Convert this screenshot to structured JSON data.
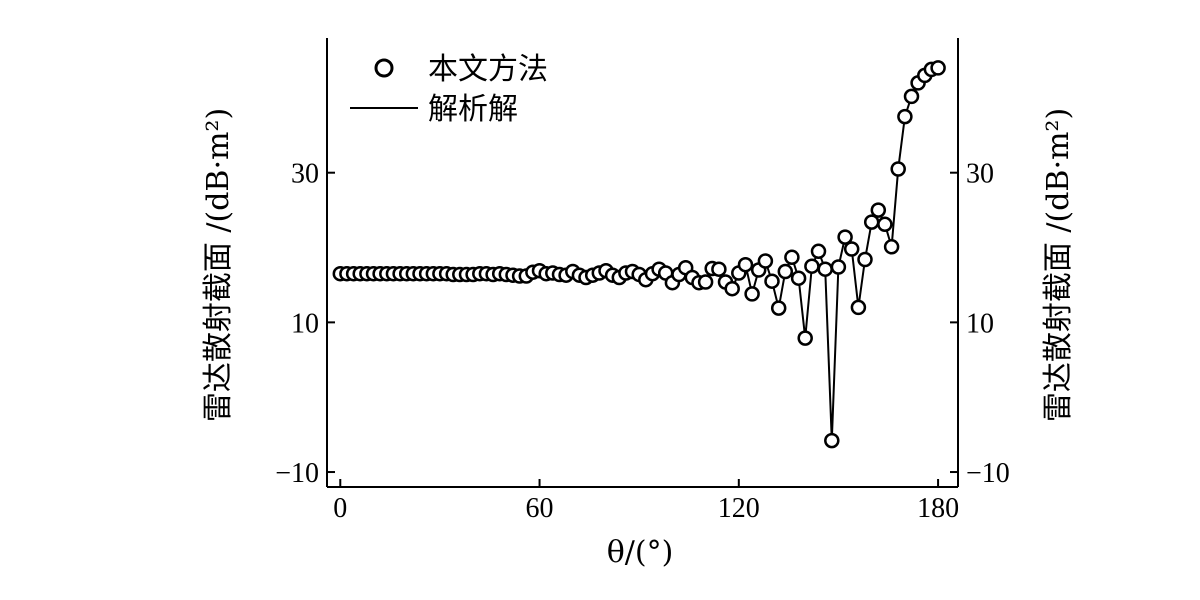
{
  "chart_data": {
    "type": "line",
    "xlabel": "θ/(°)",
    "ylabel_left": "雷达散射截面 /(dB·m²)",
    "ylabel_right": "雷达散射截面 /(dB·m²)",
    "xlim": [
      -4,
      186
    ],
    "ylim": [
      -12,
      48
    ],
    "xticks": [
      0,
      60,
      120,
      180
    ],
    "yticks": [
      -10,
      10,
      30
    ],
    "grid": false,
    "legend_position": "top-left",
    "series": [
      {
        "name": "本文方法",
        "style": "markers",
        "x": [
          0,
          2,
          4,
          6,
          8,
          10,
          12,
          14,
          16,
          18,
          20,
          22,
          24,
          26,
          28,
          30,
          32,
          34,
          36,
          38,
          40,
          42,
          44,
          46,
          48,
          50,
          52,
          54,
          56,
          58,
          60,
          62,
          64,
          66,
          68,
          70,
          72,
          74,
          76,
          78,
          80,
          82,
          84,
          86,
          88,
          90,
          92,
          94,
          96,
          98,
          100,
          102,
          104,
          106,
          108,
          110,
          112,
          114,
          116,
          118,
          120,
          122,
          124,
          126,
          128,
          130,
          132,
          134,
          136,
          138,
          140,
          142,
          144,
          146,
          148,
          150,
          152,
          154,
          156,
          158,
          160,
          162,
          164,
          166,
          168,
          170,
          172,
          174,
          176,
          178,
          180
        ],
        "y": [
          16.5,
          16.5,
          16.5,
          16.5,
          16.5,
          16.5,
          16.5,
          16.5,
          16.5,
          16.5,
          16.5,
          16.5,
          16.5,
          16.5,
          16.5,
          16.5,
          16.5,
          16.4,
          16.4,
          16.4,
          16.4,
          16.5,
          16.5,
          16.4,
          16.5,
          16.4,
          16.3,
          16.2,
          16.2,
          16.7,
          16.9,
          16.5,
          16.6,
          16.4,
          16.3,
          16.8,
          16.3,
          16.0,
          16.3,
          16.6,
          16.9,
          16.3,
          16.0,
          16.6,
          16.8,
          16.4,
          15.7,
          16.5,
          17.1,
          16.6,
          15.3,
          16.4,
          17.3,
          16.0,
          15.3,
          15.4,
          17.2,
          17.1,
          15.4,
          14.5,
          16.6,
          17.7,
          13.8,
          17.0,
          18.2,
          15.5,
          11.9,
          16.8,
          18.7,
          15.9,
          7.9,
          17.5,
          19.5,
          17.1,
          -5.8,
          17.4,
          21.4,
          19.8,
          12.0,
          18.4,
          23.4,
          25.0,
          23.1,
          20.1,
          30.5,
          37.5,
          40.2,
          42.0,
          43.0,
          43.8,
          44.0
        ]
      },
      {
        "name": "解析解",
        "style": "line",
        "x": [
          0,
          2,
          4,
          6,
          8,
          10,
          12,
          14,
          16,
          18,
          20,
          22,
          24,
          26,
          28,
          30,
          32,
          34,
          36,
          38,
          40,
          42,
          44,
          46,
          48,
          50,
          52,
          54,
          56,
          58,
          60,
          62,
          64,
          66,
          68,
          70,
          72,
          74,
          76,
          78,
          80,
          82,
          84,
          86,
          88,
          90,
          92,
          94,
          96,
          98,
          100,
          102,
          104,
          106,
          108,
          110,
          112,
          114,
          116,
          118,
          120,
          122,
          124,
          126,
          128,
          130,
          132,
          134,
          136,
          138,
          140,
          142,
          144,
          146,
          148,
          150,
          152,
          154,
          156,
          158,
          160,
          162,
          164,
          166,
          168,
          170,
          172,
          174,
          176,
          178,
          180
        ],
        "y": [
          16.5,
          16.5,
          16.5,
          16.5,
          16.5,
          16.5,
          16.5,
          16.5,
          16.5,
          16.5,
          16.5,
          16.5,
          16.5,
          16.5,
          16.5,
          16.5,
          16.5,
          16.4,
          16.4,
          16.4,
          16.4,
          16.5,
          16.5,
          16.4,
          16.5,
          16.4,
          16.3,
          16.2,
          16.2,
          16.7,
          16.9,
          16.5,
          16.6,
          16.4,
          16.3,
          16.8,
          16.3,
          16.0,
          16.3,
          16.6,
          16.9,
          16.3,
          16.0,
          16.6,
          16.8,
          16.4,
          15.7,
          16.5,
          17.1,
          16.6,
          15.3,
          16.4,
          17.3,
          16.0,
          15.3,
          15.4,
          17.2,
          17.1,
          15.4,
          14.5,
          16.6,
          17.7,
          13.8,
          17.0,
          18.2,
          15.5,
          11.9,
          16.8,
          18.7,
          15.9,
          7.9,
          17.5,
          19.5,
          17.1,
          -5.8,
          17.4,
          21.4,
          19.8,
          12.0,
          18.4,
          23.4,
          25.0,
          23.1,
          20.1,
          30.5,
          37.5,
          40.2,
          42.0,
          43.0,
          43.8,
          44.0
        ]
      }
    ]
  }
}
